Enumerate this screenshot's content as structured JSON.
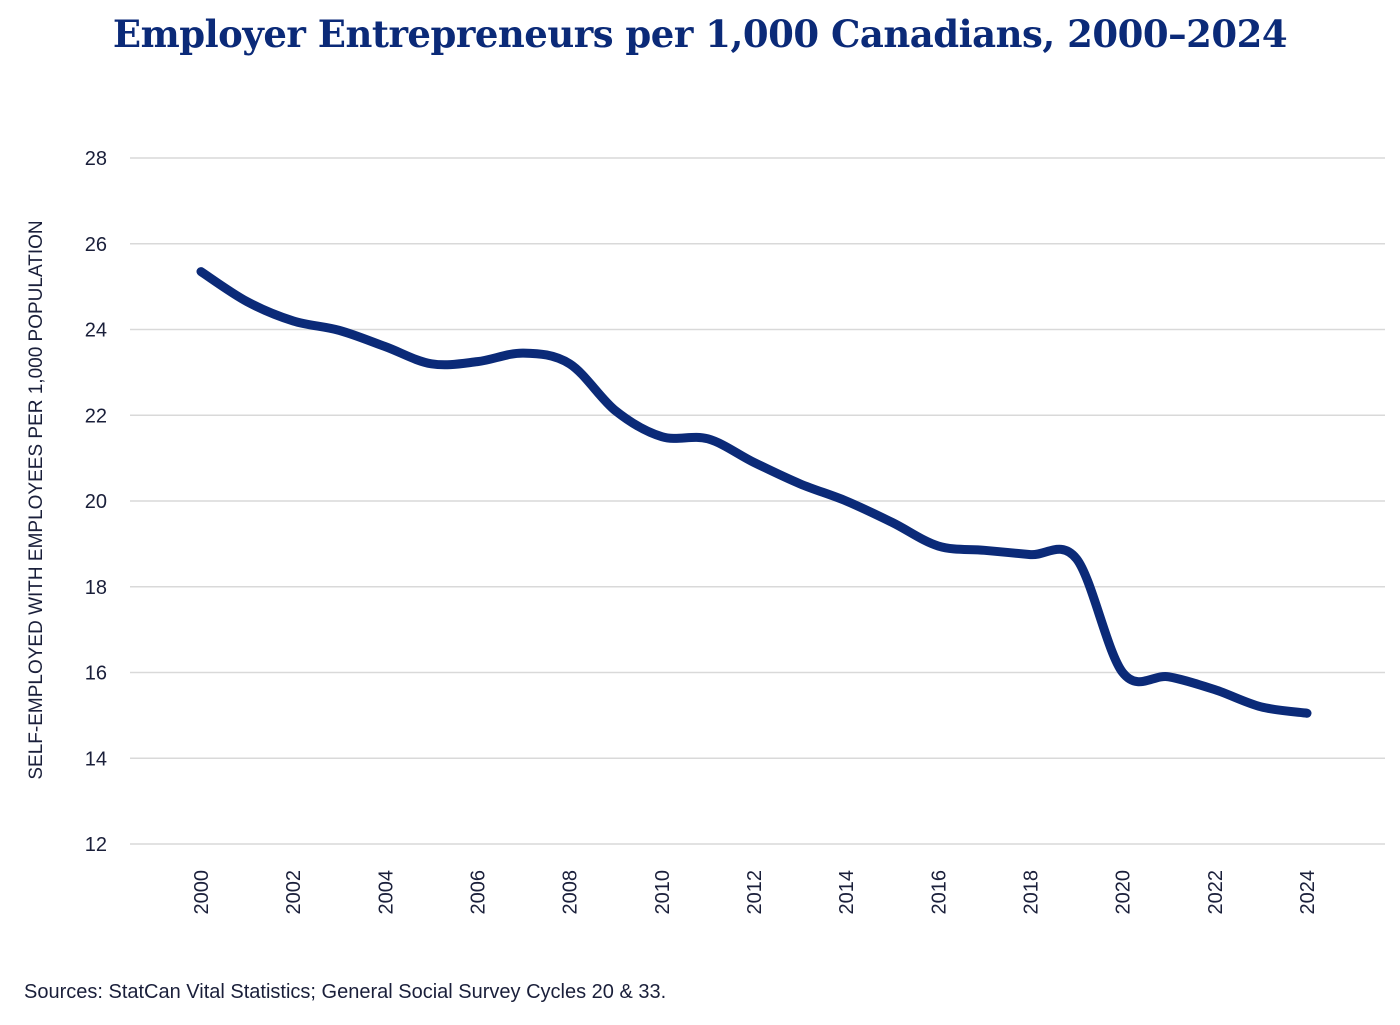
{
  "chart_data": {
    "type": "line",
    "title": "Employer Entrepreneurs per 1,000 Canadians, 2000–2024",
    "xlabel": "",
    "ylabel": "SELF-EMPLOYED WITH EMPLOYEES PER 1,000 POPULATION",
    "ylim": [
      12,
      28
    ],
    "yticks": [
      12,
      14,
      16,
      18,
      20,
      22,
      24,
      26,
      28
    ],
    "xlim": [
      2000,
      2024
    ],
    "xticks": [
      2000,
      2002,
      2004,
      2006,
      2008,
      2010,
      2012,
      2014,
      2016,
      2018,
      2020,
      2022,
      2024
    ],
    "grid": "horizontal",
    "legend": "none",
    "series": [
      {
        "name": "Employer entrepreneurs per 1,000",
        "color": "#0b2a78",
        "x": [
          2000,
          2001,
          2002,
          2003,
          2004,
          2005,
          2006,
          2007,
          2008,
          2009,
          2010,
          2011,
          2012,
          2013,
          2014,
          2015,
          2016,
          2017,
          2018,
          2019,
          2020,
          2021,
          2022,
          2023,
          2024
        ],
        "values": [
          25.35,
          24.65,
          24.2,
          23.98,
          23.6,
          23.2,
          23.25,
          23.45,
          23.2,
          22.1,
          21.5,
          21.45,
          20.9,
          20.4,
          20.0,
          19.5,
          18.95,
          18.85,
          18.75,
          18.65,
          16.0,
          15.9,
          15.6,
          15.2,
          15.05
        ]
      }
    ],
    "source": "Sources: StatCan Vital Statistics; General Social Survey Cycles 20 & 33."
  },
  "colors": {
    "title": "#0b2a78",
    "line": "#0b2a78",
    "grid": "#d9d9d9",
    "text": "#1a1f3a"
  }
}
